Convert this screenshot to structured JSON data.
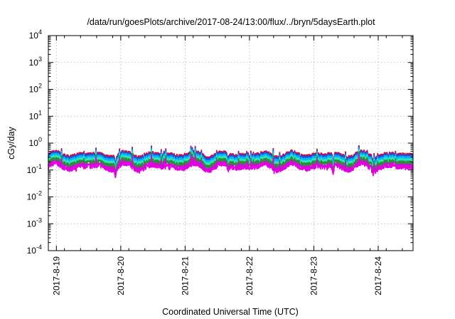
{
  "chart_data": {
    "type": "line",
    "title": "/data/run/goesPlots/archive/2017-08-24/13:00/flux/../bryn/5daysEarth.plot",
    "xlabel": "Coordinated Universal Time (UTC)",
    "ylabel": "cGy/day",
    "y_scale": "log",
    "ylim": [
      0.0001,
      10000
    ],
    "xlim": [
      "2017-08-18 21:00",
      "2017-08-24 13:00"
    ],
    "grid": true,
    "legend": "none",
    "y_ticks": [
      {
        "base": "10",
        "exp": "-4"
      },
      {
        "base": "10",
        "exp": "-3"
      },
      {
        "base": "10",
        "exp": "-2"
      },
      {
        "base": "10",
        "exp": "-1"
      },
      {
        "base": "10",
        "exp": "0"
      },
      {
        "base": "10",
        "exp": "1"
      },
      {
        "base": "10",
        "exp": "2"
      },
      {
        "base": "10",
        "exp": "3"
      },
      {
        "base": "10",
        "exp": "4"
      }
    ],
    "x_ticks": [
      "2017-8-19",
      "2017-8-20",
      "2017-8-21",
      "2017-8-22",
      "2017-8-23",
      "2017-8-24"
    ],
    "dips": [
      {
        "day": 1.17,
        "depth": 0.5
      },
      {
        "day": 2.92,
        "depth": 0.33
      },
      {
        "day": 4.55,
        "depth": 0.47
      },
      {
        "day": 5.17,
        "depth": 0.3
      }
    ],
    "series": [
      {
        "color": "#e4002b",
        "level": 0.36,
        "values": []
      },
      {
        "color": "#1f4fd6",
        "level": 0.32,
        "values": []
      },
      {
        "color": "#00b7ff",
        "level": 0.27,
        "values": []
      },
      {
        "color": "#2ee8b6",
        "level": 0.22,
        "values": []
      },
      {
        "color": "#2d8c3c",
        "level": 0.18,
        "values": []
      },
      {
        "color": "#e000e0",
        "level": 0.135,
        "values": []
      }
    ]
  }
}
